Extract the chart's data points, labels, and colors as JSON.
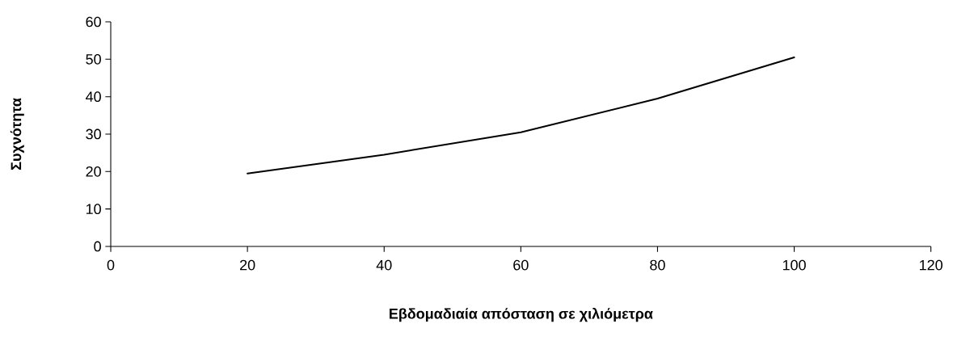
{
  "chart_data": {
    "type": "line",
    "xlabel": "Εβδομαδιαία απόσταση σε χιλιόμετρα",
    "ylabel": "Συχνότητα",
    "x": [
      20,
      40,
      60,
      80,
      100
    ],
    "series": [
      {
        "color": "#000000",
        "values": [
          19.5,
          24.5,
          30.5,
          39.5,
          50.5
        ]
      }
    ],
    "xlim": [
      0,
      120
    ],
    "xticks": [
      0,
      20,
      40,
      60,
      80,
      100,
      120
    ],
    "ylim": [
      0,
      60
    ],
    "yticks": [
      0,
      10,
      20,
      30,
      40,
      50,
      60
    ],
    "grid": false,
    "marker": "none",
    "line_style": "solid"
  }
}
